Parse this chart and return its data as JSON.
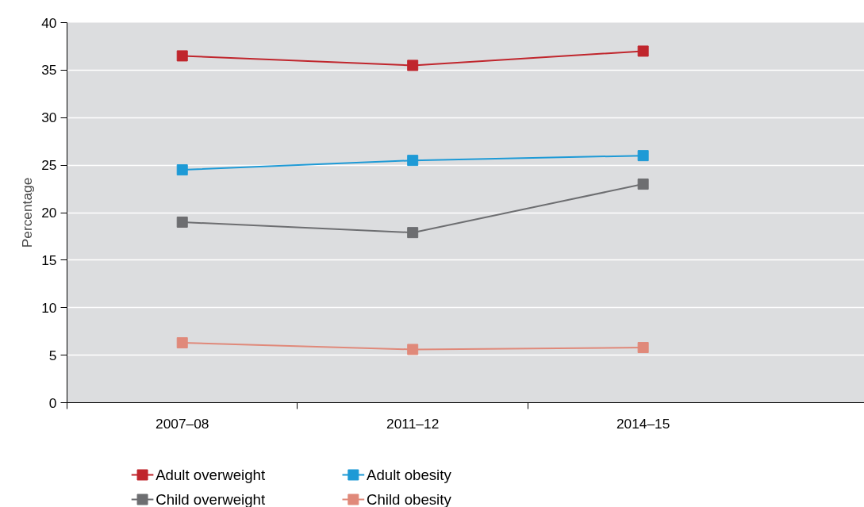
{
  "chart_data": {
    "type": "line",
    "ylabel": "Percentage",
    "categories": [
      "2007–08",
      "2011–12",
      "2014–15"
    ],
    "series": [
      {
        "name": "Adult overweight",
        "color": "#c0262d",
        "values": [
          36.5,
          35.5,
          37.0
        ]
      },
      {
        "name": "Adult obesity",
        "color": "#1e9ad6",
        "values": [
          24.5,
          25.5,
          26.0
        ]
      },
      {
        "name": "Child overweight",
        "color": "#6d6e71",
        "values": [
          19.0,
          17.9,
          23.0
        ]
      },
      {
        "name": "Child obesity",
        "color": "#e0897a",
        "values": [
          6.3,
          5.6,
          5.8
        ]
      }
    ],
    "ylim": [
      0,
      40
    ],
    "yticks": [
      0,
      5,
      10,
      15,
      20,
      25,
      30,
      35,
      40
    ],
    "grid": "y",
    "legend": "bottom",
    "marker": "square",
    "line_style": "solid"
  }
}
